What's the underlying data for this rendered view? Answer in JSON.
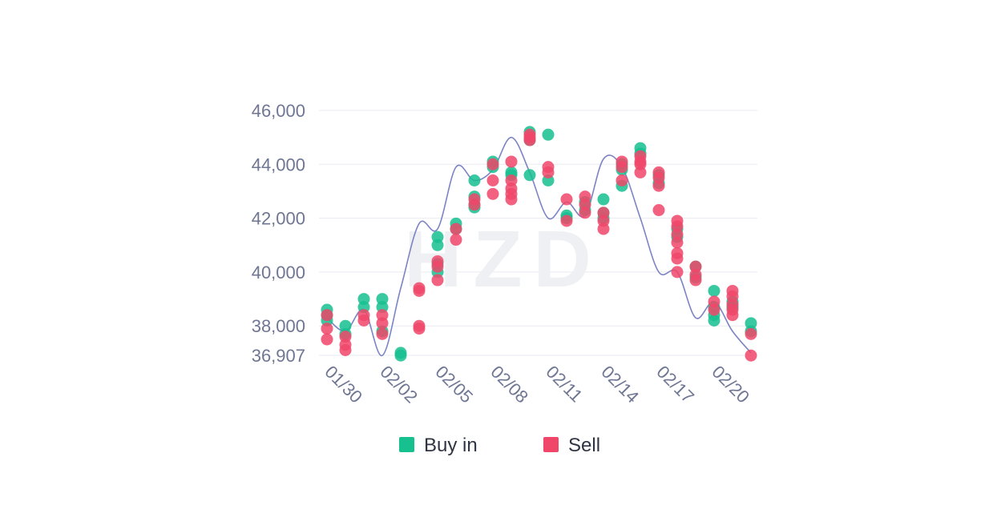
{
  "chart_data": {
    "type": "scatter",
    "watermark": "HZD",
    "ylim": [
      36907,
      46000
    ],
    "xlim": [
      0,
      23
    ],
    "y_ticks": [
      {
        "value": 46000,
        "label": "46,000"
      },
      {
        "value": 44000,
        "label": "44,000"
      },
      {
        "value": 42000,
        "label": "42,000"
      },
      {
        "value": 40000,
        "label": "40,000"
      },
      {
        "value": 38000,
        "label": "38,000"
      },
      {
        "value": 36907,
        "label": "36,907"
      }
    ],
    "x_ticks": [
      {
        "value": 0,
        "label": "01/30"
      },
      {
        "value": 3,
        "label": "02/02"
      },
      {
        "value": 6,
        "label": "02/05"
      },
      {
        "value": 9,
        "label": "02/08"
      },
      {
        "value": 12,
        "label": "02/11"
      },
      {
        "value": 15,
        "label": "02/14"
      },
      {
        "value": 18,
        "label": "02/17"
      },
      {
        "value": 21,
        "label": "02/20"
      }
    ],
    "legend": [
      {
        "label": "Buy in",
        "color": "#16c08f"
      },
      {
        "label": "Sell",
        "color": "#f0466a"
      }
    ],
    "colors": {
      "buy": "#16c08f",
      "sell": "#f0466a",
      "line": "#7c83c4",
      "grid": "#e9ebf1"
    },
    "line": {
      "x": [
        0,
        1,
        2,
        3,
        4,
        5,
        6,
        7,
        8,
        9,
        10,
        11,
        12,
        13,
        14,
        15,
        16,
        17,
        18,
        19,
        20,
        21,
        22,
        23
      ],
      "y": [
        38300,
        37800,
        38600,
        36900,
        39400,
        41800,
        41600,
        43900,
        43400,
        43800,
        45000,
        43700,
        42000,
        42600,
        42100,
        44200,
        43900,
        42000,
        40000,
        40000,
        38300,
        38900,
        37800,
        37000
      ]
    },
    "series": [
      {
        "name": "Buy in",
        "points": [
          [
            0,
            38600
          ],
          [
            0,
            38400
          ],
          [
            0,
            38200
          ],
          [
            1,
            38000
          ],
          [
            1,
            37700
          ],
          [
            2,
            39000
          ],
          [
            2,
            38700
          ],
          [
            3,
            39000
          ],
          [
            3,
            38700
          ],
          [
            3,
            37800
          ],
          [
            4,
            36900
          ],
          [
            4,
            37000
          ],
          [
            6,
            41300
          ],
          [
            6,
            41000
          ],
          [
            6,
            40300
          ],
          [
            6,
            40000
          ],
          [
            7,
            41800
          ],
          [
            7,
            41600
          ],
          [
            8,
            43400
          ],
          [
            8,
            42800
          ],
          [
            8,
            42500
          ],
          [
            8,
            42400
          ],
          [
            9,
            44100
          ],
          [
            9,
            43900
          ],
          [
            10,
            43700
          ],
          [
            10,
            43600
          ],
          [
            11,
            45200
          ],
          [
            11,
            44900
          ],
          [
            11,
            43600
          ],
          [
            12,
            45100
          ],
          [
            12,
            43400
          ],
          [
            13,
            42100
          ],
          [
            13,
            42000
          ],
          [
            14,
            42600
          ],
          [
            14,
            42300
          ],
          [
            15,
            42200
          ],
          [
            15,
            42000
          ],
          [
            15,
            42700
          ],
          [
            16,
            44000
          ],
          [
            16,
            43800
          ],
          [
            16,
            43200
          ],
          [
            17,
            44600
          ],
          [
            17,
            44400
          ],
          [
            18,
            43600
          ],
          [
            18,
            43300
          ],
          [
            19,
            41600
          ],
          [
            19,
            41300
          ],
          [
            20,
            40200
          ],
          [
            20,
            39800
          ],
          [
            21,
            39300
          ],
          [
            21,
            38700
          ],
          [
            21,
            38400
          ],
          [
            21,
            38200
          ],
          [
            22,
            38900
          ],
          [
            22,
            38700
          ],
          [
            23,
            38100
          ],
          [
            23,
            37800
          ]
        ]
      },
      {
        "name": "Sell",
        "points": [
          [
            0,
            38400
          ],
          [
            0,
            37900
          ],
          [
            0,
            37500
          ],
          [
            1,
            37600
          ],
          [
            1,
            37300
          ],
          [
            1,
            37100
          ],
          [
            2,
            38400
          ],
          [
            2,
            38200
          ],
          [
            3,
            38400
          ],
          [
            3,
            38100
          ],
          [
            3,
            37700
          ],
          [
            5,
            39400
          ],
          [
            5,
            39300
          ],
          [
            5,
            38000
          ],
          [
            5,
            37900
          ],
          [
            6,
            40400
          ],
          [
            6,
            40200
          ],
          [
            6,
            39700
          ],
          [
            7,
            41600
          ],
          [
            7,
            41200
          ],
          [
            8,
            42700
          ],
          [
            8,
            42500
          ],
          [
            9,
            44000
          ],
          [
            9,
            43400
          ],
          [
            9,
            42900
          ],
          [
            10,
            44100
          ],
          [
            10,
            43400
          ],
          [
            10,
            43100
          ],
          [
            10,
            42900
          ],
          [
            10,
            42700
          ],
          [
            11,
            45100
          ],
          [
            11,
            45000
          ],
          [
            11,
            44900
          ],
          [
            12,
            43900
          ],
          [
            12,
            43700
          ],
          [
            13,
            42700
          ],
          [
            13,
            41900
          ],
          [
            14,
            42800
          ],
          [
            14,
            42500
          ],
          [
            14,
            42200
          ],
          [
            15,
            42200
          ],
          [
            15,
            41900
          ],
          [
            15,
            41600
          ],
          [
            16,
            44100
          ],
          [
            16,
            43900
          ],
          [
            16,
            43400
          ],
          [
            17,
            44300
          ],
          [
            17,
            44100
          ],
          [
            17,
            44000
          ],
          [
            17,
            43700
          ],
          [
            18,
            43700
          ],
          [
            18,
            43500
          ],
          [
            18,
            43200
          ],
          [
            18,
            42300
          ],
          [
            19,
            41900
          ],
          [
            19,
            41700
          ],
          [
            19,
            41400
          ],
          [
            19,
            41100
          ],
          [
            19,
            40700
          ],
          [
            19,
            40500
          ],
          [
            19,
            40000
          ],
          [
            20,
            39900
          ],
          [
            20,
            39700
          ],
          [
            20,
            40200
          ],
          [
            21,
            38900
          ],
          [
            21,
            38600
          ],
          [
            22,
            39300
          ],
          [
            22,
            39100
          ],
          [
            22,
            38800
          ],
          [
            22,
            38600
          ],
          [
            22,
            38400
          ],
          [
            23,
            37700
          ],
          [
            23,
            36900
          ]
        ]
      }
    ]
  }
}
